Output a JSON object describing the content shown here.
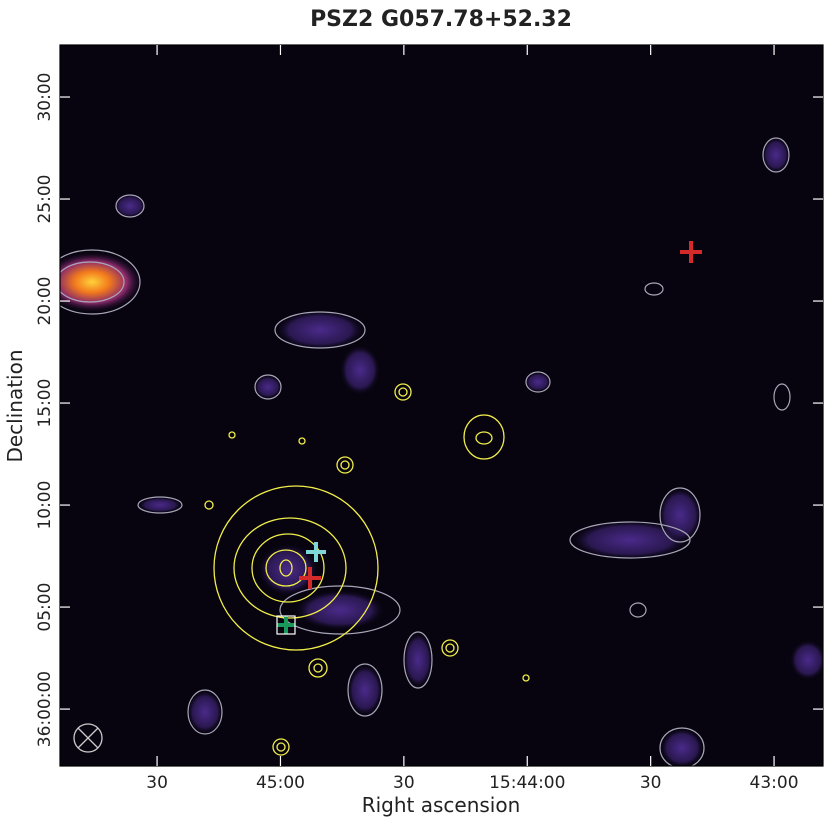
{
  "chart_data": {
    "type": "image",
    "title": "PSZ2 G057.78+52.32",
    "x_label": "Right ascension",
    "y_label": "Declination",
    "xlim": [
      2753.6,
      2568.1
    ],
    "xticks": [
      {
        "value": 2730,
        "label": "30"
      },
      {
        "value": 2700,
        "label": "45:00"
      },
      {
        "value": 2670,
        "label": "30"
      },
      {
        "value": 2640,
        "label": "15:44:00"
      },
      {
        "value": 2610,
        "label": "30"
      },
      {
        "value": 2580,
        "label": "43:00"
      }
    ],
    "ylim": [
      -2.79,
      32.55
    ],
    "yticks": [
      {
        "value": 30,
        "label": "30:00"
      },
      {
        "value": 25,
        "label": "25:00"
      },
      {
        "value": 20,
        "label": "20:00"
      },
      {
        "value": 15,
        "label": "15:00"
      },
      {
        "value": 10,
        "label": "10:00"
      },
      {
        "value": 5,
        "label": "05:00"
      },
      {
        "value": 0,
        "label": "36:00:00"
      }
    ]
  }
}
